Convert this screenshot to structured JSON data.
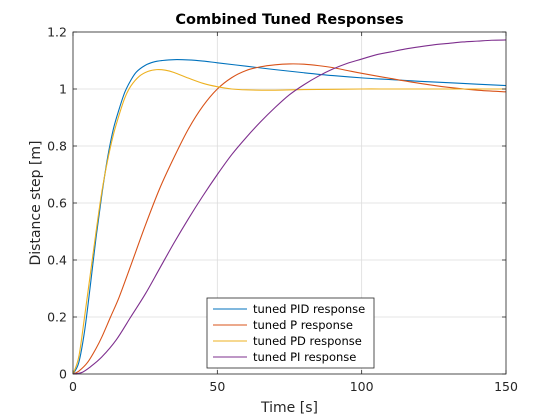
{
  "chart_data": {
    "type": "line",
    "title": "Combined Tuned Responses",
    "xlabel": "Time [s]",
    "ylabel": "Distance step [m]",
    "xlim": [
      0,
      150
    ],
    "ylim": [
      0,
      1.2
    ],
    "xticks": [
      0,
      50,
      100,
      150
    ],
    "yticks": [
      0,
      0.2,
      0.4,
      0.6,
      0.8,
      1,
      1.2
    ],
    "xtick_labels": [
      "0",
      "50",
      "100",
      "150"
    ],
    "ytick_labels": [
      "0",
      "0.2",
      "0.4",
      "0.6",
      "0.8",
      "1",
      "1.2"
    ],
    "grid": true,
    "legend_position": "bottom-center",
    "series": [
      {
        "name": "tuned PID response",
        "color": "#0072BD",
        "x": [
          0,
          2,
          4,
          6,
          8,
          10,
          12,
          14,
          16,
          18,
          20,
          22,
          25,
          28,
          31,
          35,
          40,
          45,
          50,
          60,
          70,
          80,
          90,
          100,
          110,
          120,
          130,
          140,
          150
        ],
        "y": [
          0,
          0.04,
          0.15,
          0.31,
          0.48,
          0.63,
          0.76,
          0.86,
          0.93,
          0.99,
          1.03,
          1.06,
          1.083,
          1.095,
          1.1,
          1.103,
          1.102,
          1.098,
          1.092,
          1.08,
          1.068,
          1.057,
          1.047,
          1.039,
          1.033,
          1.027,
          1.022,
          1.017,
          1.012
        ]
      },
      {
        "name": "tuned P response",
        "color": "#D95319",
        "x": [
          0,
          2,
          5,
          8,
          10,
          13,
          16,
          20,
          25,
          30,
          35,
          40,
          45,
          50,
          55,
          60,
          65,
          70,
          75,
          80,
          85,
          90,
          95,
          100,
          110,
          120,
          130,
          140,
          150
        ],
        "y": [
          0,
          0.01,
          0.04,
          0.09,
          0.13,
          0.2,
          0.27,
          0.38,
          0.52,
          0.65,
          0.76,
          0.86,
          0.94,
          1.0,
          1.04,
          1.065,
          1.078,
          1.085,
          1.088,
          1.087,
          1.082,
          1.075,
          1.065,
          1.055,
          1.037,
          1.02,
          1.006,
          0.996,
          0.99
        ]
      },
      {
        "name": "tuned PD response",
        "color": "#EDB120",
        "x": [
          0,
          2,
          4,
          6,
          8,
          10,
          12,
          14,
          16,
          18,
          20,
          23,
          26,
          29,
          32,
          35,
          40,
          45,
          50,
          55,
          60,
          70,
          80,
          90,
          100,
          110,
          120,
          130,
          140,
          150
        ],
        "y": [
          0,
          0.06,
          0.2,
          0.35,
          0.5,
          0.64,
          0.75,
          0.84,
          0.91,
          0.97,
          1.01,
          1.045,
          1.062,
          1.068,
          1.066,
          1.058,
          1.038,
          1.02,
          1.008,
          1.0,
          0.997,
          0.996,
          0.998,
          0.999,
          1.0,
          1.0,
          1.0,
          1.0,
          1.0,
          1.0
        ]
      },
      {
        "name": "tuned PI response",
        "color": "#7E2F8E",
        "x": [
          0,
          3,
          6,
          10,
          15,
          20,
          25,
          30,
          35,
          40,
          45,
          50,
          55,
          60,
          65,
          70,
          75,
          80,
          85,
          90,
          95,
          100,
          105,
          110,
          115,
          120,
          125,
          130,
          135,
          140,
          145,
          150
        ],
        "y": [
          0,
          0.005,
          0.025,
          0.06,
          0.12,
          0.2,
          0.28,
          0.37,
          0.46,
          0.545,
          0.625,
          0.7,
          0.77,
          0.83,
          0.885,
          0.935,
          0.98,
          1.015,
          1.045,
          1.07,
          1.09,
          1.105,
          1.12,
          1.13,
          1.14,
          1.148,
          1.155,
          1.16,
          1.165,
          1.168,
          1.171,
          1.172
        ]
      }
    ]
  }
}
